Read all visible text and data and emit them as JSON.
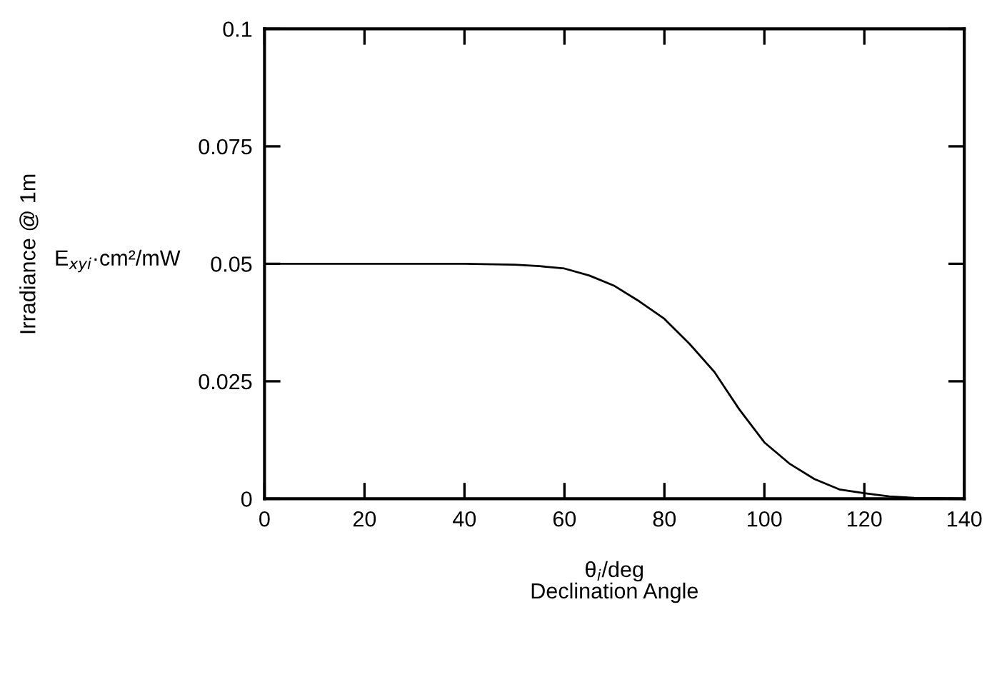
{
  "chart_data": {
    "type": "line",
    "xlabel": "Declination Angle",
    "annotations": [
      "Irradiance @ 1m",
      "E$_{xyi}$·cm²/mW",
      "θ$_{i}$/deg"
    ],
    "series": [
      {
        "color": "#000000",
        "x": [
          0,
          10,
          20,
          30,
          40,
          50,
          55,
          60,
          65,
          70,
          75,
          80,
          85,
          90,
          95,
          100,
          105,
          110,
          115,
          120,
          125,
          130,
          135,
          140
        ],
        "values": [
          0.05,
          0.05,
          0.05,
          0.05,
          0.05,
          0.0498,
          0.0495,
          0.049,
          0.0475,
          0.0453,
          0.042,
          0.0383,
          0.033,
          0.027,
          0.019,
          0.012,
          0.0075,
          0.0042,
          0.002,
          0.0012,
          0.0005,
          0.0002,
          0.0001,
          0
        ]
      }
    ],
    "xlim": [
      0,
      140
    ],
    "xticks": [
      0,
      20,
      40,
      60,
      80,
      100,
      120,
      140
    ],
    "ylim": [
      0,
      0.1
    ],
    "yticks": [
      0,
      0.025,
      0.05,
      0.075,
      0.1
    ],
    "grid": false,
    "legend": false,
    "marker": "none",
    "line_style": "solid"
  }
}
